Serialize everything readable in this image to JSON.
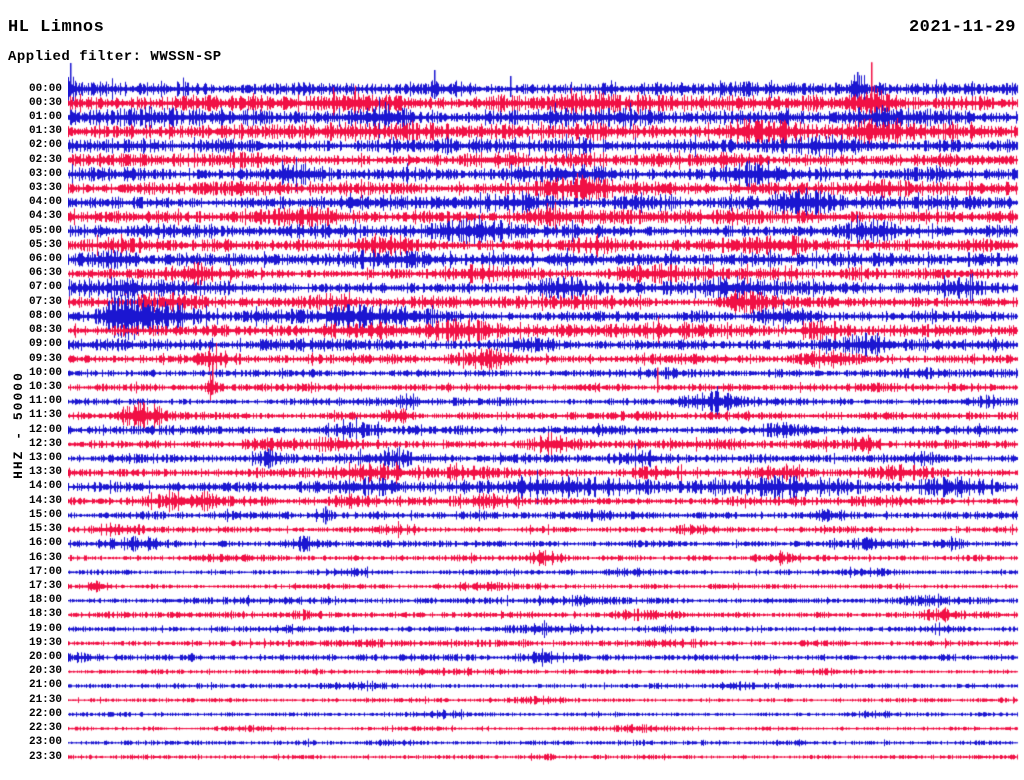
{
  "header": {
    "station": "HL Limnos",
    "date": "2021-11-29",
    "filter": "Applied filter: WWSSN-SP"
  },
  "y_axis": {
    "label": "HHZ - 50000"
  },
  "chart_data": {
    "type": "line",
    "title": "HL Limnos",
    "date": "2021-11-29",
    "filter": "WWSSN-SP",
    "channel_scale_label": "HHZ - 50000",
    "row_duration_minutes": 30,
    "row_count": 48,
    "legend_position": "none",
    "grid": false,
    "trace_colors": {
      "b": "#1b16d1",
      "r": "#f11045"
    },
    "row_format": [
      "time_label",
      "color_key",
      "base_amplitude_px",
      "bursts[pos,amp_px,width]",
      "spikes[pos,up_px,down_px]"
    ],
    "rows": [
      [
        "00:00",
        "b",
        5.0,
        [
          [
            0.003,
            7,
            0.003
          ],
          [
            0.385,
            7,
            0.004
          ],
          [
            0.41,
            6,
            0.003
          ],
          [
            0.57,
            5,
            0.004
          ],
          [
            0.83,
            7,
            0.004
          ]
        ],
        [
          [
            0.002,
            26,
            6
          ],
          [
            0.385,
            19,
            10
          ],
          [
            0.465,
            13,
            8
          ],
          [
            0.83,
            17,
            9
          ]
        ]
      ],
      [
        "00:30",
        "r",
        5.5,
        [
          [
            0.2,
            3,
            0.05
          ],
          [
            0.31,
            4,
            0.03
          ],
          [
            0.56,
            3,
            0.03
          ],
          [
            0.845,
            10,
            0.012
          ]
        ],
        [
          [
            0.845,
            41,
            24
          ]
        ]
      ],
      [
        "01:00",
        "b",
        6.0,
        [
          [
            0.08,
            3,
            0.04
          ],
          [
            0.33,
            3,
            0.03
          ],
          [
            0.55,
            2.5,
            0.05
          ],
          [
            0.85,
            3,
            0.02
          ]
        ],
        []
      ],
      [
        "01:30",
        "r",
        5.5,
        [
          [
            0.31,
            4,
            0.03
          ],
          [
            0.55,
            3,
            0.02
          ],
          [
            0.74,
            4,
            0.04
          ],
          [
            0.86,
            6,
            0.02
          ]
        ],
        []
      ],
      [
        "02:00",
        "b",
        5.0,
        [
          [
            0.07,
            4,
            0.02
          ],
          [
            0.52,
            3,
            0.03
          ],
          [
            0.8,
            3.5,
            0.02
          ]
        ],
        []
      ],
      [
        "02:30",
        "r",
        4.8,
        [
          [
            0.18,
            3.5,
            0.02
          ],
          [
            0.45,
            2.5,
            0.04
          ],
          [
            0.7,
            4,
            0.02
          ]
        ],
        []
      ],
      [
        "03:00",
        "b",
        5.0,
        [
          [
            0.23,
            3.5,
            0.03
          ],
          [
            0.55,
            3.5,
            0.03
          ],
          [
            0.72,
            5,
            0.02
          ]
        ],
        []
      ],
      [
        "03:30",
        "r",
        4.8,
        [
          [
            0.54,
            4,
            0.03
          ],
          [
            0.85,
            3.5,
            0.02
          ]
        ],
        []
      ],
      [
        "04:00",
        "b",
        5.2,
        [
          [
            0.47,
            4,
            0.03
          ],
          [
            0.62,
            3.5,
            0.02
          ],
          [
            0.77,
            5,
            0.02
          ]
        ],
        []
      ],
      [
        "04:30",
        "r",
        4.8,
        [
          [
            0.25,
            3.5,
            0.03
          ],
          [
            0.5,
            3.5,
            0.02
          ],
          [
            0.68,
            3.5,
            0.03
          ]
        ],
        []
      ],
      [
        "05:00",
        "b",
        5.2,
        [
          [
            0.44,
            4,
            0.04
          ],
          [
            0.85,
            4,
            0.02
          ]
        ],
        []
      ],
      [
        "05:30",
        "r",
        4.8,
        [
          [
            0.35,
            3.5,
            0.03
          ],
          [
            0.57,
            3.5,
            0.02
          ],
          [
            0.75,
            3.5,
            0.03
          ]
        ],
        []
      ],
      [
        "06:00",
        "b",
        5.0,
        [
          [
            0.05,
            3.5,
            0.02
          ],
          [
            0.33,
            3.5,
            0.03
          ],
          [
            0.53,
            3.5,
            0.02
          ]
        ],
        []
      ],
      [
        "06:30",
        "r",
        4.4,
        [
          [
            0.13,
            3.5,
            0.02
          ],
          [
            0.45,
            3.5,
            0.03
          ],
          [
            0.62,
            2.5,
            0.03
          ]
        ],
        []
      ],
      [
        "07:00",
        "b",
        4.8,
        [
          [
            0.05,
            5,
            0.03
          ],
          [
            0.52,
            3.5,
            0.02
          ],
          [
            0.7,
            4,
            0.02
          ],
          [
            0.93,
            4,
            0.02
          ]
        ],
        []
      ],
      [
        "07:30",
        "r",
        4.3,
        [
          [
            0.1,
            5,
            0.03
          ],
          [
            0.27,
            4,
            0.02
          ],
          [
            0.55,
            3.5,
            0.03
          ],
          [
            0.72,
            3.5,
            0.02
          ]
        ],
        []
      ],
      [
        "08:00",
        "b",
        4.3,
        [
          [
            0.058,
            13,
            0.014
          ],
          [
            0.1,
            5,
            0.03
          ],
          [
            0.3,
            5,
            0.06
          ],
          [
            0.75,
            3.5,
            0.02
          ]
        ],
        []
      ],
      [
        "08:30",
        "r",
        4.2,
        [
          [
            0.38,
            5,
            0.06
          ],
          [
            0.62,
            4.5,
            0.03
          ],
          [
            0.8,
            3.5,
            0.02
          ]
        ],
        []
      ],
      [
        "09:00",
        "b",
        4.2,
        [
          [
            0.25,
            2.5,
            0.03
          ],
          [
            0.48,
            6,
            0.025
          ],
          [
            0.84,
            6,
            0.02
          ]
        ],
        []
      ],
      [
        "09:30",
        "r",
        3.8,
        [
          [
            0.15,
            4.5,
            0.012
          ],
          [
            0.44,
            4.5,
            0.02
          ],
          [
            0.8,
            2.5,
            0.02
          ]
        ],
        [
          [
            0.44,
            10,
            6
          ]
        ]
      ],
      [
        "10:00",
        "b",
        3.0,
        [
          [
            0.63,
            3.5,
            0.01
          ],
          [
            0.9,
            2.5,
            0.02
          ]
        ],
        []
      ],
      [
        "10:30",
        "r",
        2.9,
        [
          [
            0.152,
            6,
            0.006
          ],
          [
            0.85,
            2.5,
            0.02
          ]
        ],
        [
          [
            0.152,
            30,
            7
          ],
          [
            0.62,
            20,
            5
          ]
        ]
      ],
      [
        "11:00",
        "b",
        2.9,
        [
          [
            0.36,
            3.5,
            0.01
          ],
          [
            0.675,
            5.5,
            0.022
          ],
          [
            0.97,
            3.5,
            0.01
          ]
        ],
        []
      ],
      [
        "11:30",
        "r",
        2.9,
        [
          [
            0.075,
            7,
            0.018
          ],
          [
            0.35,
            3.5,
            0.01
          ],
          [
            0.6,
            2.5,
            0.02
          ]
        ],
        []
      ],
      [
        "12:00",
        "b",
        3.3,
        [
          [
            0.3,
            2.5,
            0.02
          ],
          [
            0.55,
            2.5,
            0.02
          ],
          [
            0.75,
            2.5,
            0.015
          ]
        ],
        []
      ],
      [
        "12:30",
        "r",
        3.3,
        [
          [
            0.25,
            3,
            0.05
          ],
          [
            0.51,
            5,
            0.015
          ],
          [
            0.68,
            3.5,
            0.02
          ],
          [
            0.84,
            4.5,
            0.01
          ]
        ],
        []
      ],
      [
        "13:00",
        "b",
        3.3,
        [
          [
            0.21,
            5,
            0.01
          ],
          [
            0.34,
            3.5,
            0.04
          ],
          [
            0.6,
            3.5,
            0.015
          ],
          [
            0.9,
            3.5,
            0.012
          ]
        ],
        [
          [
            0.21,
            10,
            10
          ]
        ]
      ],
      [
        "13:30",
        "r",
        3.4,
        [
          [
            0.33,
            4,
            0.03
          ],
          [
            0.42,
            3.5,
            0.02
          ],
          [
            0.61,
            4,
            0.02
          ],
          [
            0.75,
            4,
            0.02
          ],
          [
            0.88,
            5,
            0.025
          ]
        ],
        []
      ],
      [
        "14:00",
        "b",
        3.8,
        [
          [
            0.3,
            4,
            0.03
          ],
          [
            0.5,
            5,
            0.08
          ],
          [
            0.75,
            4.5,
            0.05
          ],
          [
            0.93,
            4.5,
            0.03
          ]
        ],
        []
      ],
      [
        "14:30",
        "r",
        3.4,
        [
          [
            0.14,
            5,
            0.03
          ],
          [
            0.3,
            4,
            0.02
          ],
          [
            0.45,
            4.5,
            0.02
          ],
          [
            0.85,
            2.5,
            0.02
          ]
        ],
        []
      ],
      [
        "15:00",
        "b",
        2.9,
        [
          [
            0.27,
            4,
            0.006
          ],
          [
            0.55,
            2.5,
            0.02
          ],
          [
            0.8,
            2.5,
            0.015
          ]
        ],
        [
          [
            0.27,
            9,
            9
          ]
        ]
      ],
      [
        "15:30",
        "r",
        2.4,
        [
          [
            0.06,
            3.5,
            0.02
          ],
          [
            0.35,
            2.5,
            0.015
          ],
          [
            0.65,
            1.8,
            0.02
          ]
        ],
        []
      ],
      [
        "16:00",
        "b",
        2.5,
        [
          [
            0.07,
            3.5,
            0.025
          ],
          [
            0.25,
            5.5,
            0.015
          ],
          [
            0.85,
            4.5,
            0.02
          ],
          [
            0.93,
            3.5,
            0.01
          ]
        ],
        []
      ],
      [
        "16:30",
        "r",
        2.4,
        [
          [
            0.15,
            1.8,
            0.02
          ],
          [
            0.503,
            7.5,
            0.012
          ],
          [
            0.75,
            1.8,
            0.02
          ]
        ],
        []
      ],
      [
        "17:00",
        "b",
        2.0,
        [
          [
            0.3,
            1.8,
            0.02
          ],
          [
            0.6,
            1.8,
            0.02
          ],
          [
            0.85,
            1.5,
            0.02
          ]
        ],
        []
      ],
      [
        "17:30",
        "r",
        2.0,
        [
          [
            0.03,
            3.5,
            0.01
          ],
          [
            0.45,
            1.8,
            0.02
          ],
          [
            0.7,
            1.8,
            0.015
          ]
        ],
        []
      ],
      [
        "18:00",
        "b",
        2.4,
        [
          [
            0.2,
            1.8,
            0.03
          ],
          [
            0.55,
            1.8,
            0.03
          ],
          [
            0.9,
            1.8,
            0.02
          ]
        ],
        []
      ],
      [
        "18:30",
        "r",
        2.4,
        [
          [
            0.25,
            1.8,
            0.02
          ],
          [
            0.6,
            1.8,
            0.02
          ],
          [
            0.92,
            2.5,
            0.015
          ]
        ],
        []
      ],
      [
        "19:00",
        "b",
        2.4,
        [
          [
            0.23,
            2.5,
            0.02
          ],
          [
            0.5,
            1.8,
            0.03
          ],
          [
            0.92,
            2.5,
            0.01
          ]
        ],
        []
      ],
      [
        "19:30",
        "r",
        2.3,
        [
          [
            0.3,
            1.8,
            0.02
          ],
          [
            0.65,
            1.8,
            0.02
          ]
        ],
        []
      ],
      [
        "20:00",
        "b",
        2.4,
        [
          [
            0.02,
            2.5,
            0.01
          ],
          [
            0.5,
            1.8,
            0.03
          ]
        ],
        []
      ],
      [
        "20:30",
        "r",
        2.0,
        [
          [
            0.4,
            1.3,
            0.03
          ],
          [
            0.8,
            1.3,
            0.02
          ]
        ],
        []
      ],
      [
        "21:00",
        "b",
        2.0,
        [
          [
            0.3,
            1.3,
            0.02
          ],
          [
            0.7,
            1.3,
            0.02
          ]
        ],
        []
      ],
      [
        "21:30",
        "r",
        1.8,
        [
          [
            0.5,
            1.3,
            0.02
          ]
        ],
        []
      ],
      [
        "22:00",
        "b",
        1.8,
        [
          [
            0.4,
            1.8,
            0.015
          ],
          [
            0.85,
            1.3,
            0.01
          ]
        ],
        []
      ],
      [
        "22:30",
        "r",
        1.7,
        [
          [
            0.2,
            1.3,
            0.02
          ],
          [
            0.6,
            1.3,
            0.02
          ]
        ],
        []
      ],
      [
        "23:00",
        "b",
        1.8,
        [
          [
            0.35,
            1.3,
            0.02
          ],
          [
            0.75,
            1.3,
            0.02
          ]
        ],
        []
      ],
      [
        "23:30",
        "r",
        1.7,
        [
          [
            0.5,
            1.3,
            0.02
          ]
        ],
        []
      ]
    ]
  }
}
